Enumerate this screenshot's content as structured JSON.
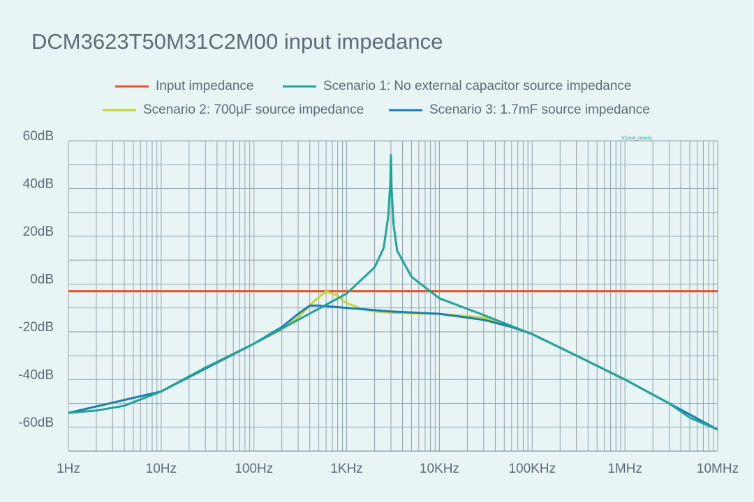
{
  "chart_data": {
    "type": "line",
    "title": "DCM3623T50M31C2M00 input impedance",
    "annotation": "V(zout_noom)",
    "log_x": true,
    "grid": true,
    "xlim": [
      1,
      10000000
    ],
    "xticks": [
      {
        "value": 1,
        "label": "1Hz"
      },
      {
        "value": 10,
        "label": "10Hz"
      },
      {
        "value": 100,
        "label": "100Hz"
      },
      {
        "value": 1000,
        "label": "1KHz"
      },
      {
        "value": 10000,
        "label": "10KHz"
      },
      {
        "value": 100000,
        "label": "100KHz"
      },
      {
        "value": 1000000,
        "label": "1MHz"
      },
      {
        "value": 10000000,
        "label": "10MHz"
      }
    ],
    "ylim": [
      -70,
      60
    ],
    "yticks": [
      {
        "value": 60,
        "label": "60dB"
      },
      {
        "value": 40,
        "label": "40dB"
      },
      {
        "value": 20,
        "label": "20dB"
      },
      {
        "value": 0,
        "label": "0dB"
      },
      {
        "value": -20,
        "label": "-20dB"
      },
      {
        "value": -40,
        "label": "-40dB"
      },
      {
        "value": -60,
        "label": "-60dB"
      }
    ],
    "series": [
      {
        "name": "Input impedance",
        "color": "#e8502e",
        "x": [
          1,
          10000000
        ],
        "values": [
          -3,
          -3
        ]
      },
      {
        "name": "Scenario 1: No external capacitor source impedance",
        "color": "#1fa39b",
        "x": [
          1,
          2,
          4,
          10,
          30,
          100,
          300,
          1000,
          2000,
          2500,
          2800,
          2950,
          3000,
          3050,
          3200,
          3500,
          5000,
          10000,
          30000,
          100000,
          300000,
          1000000,
          3000000,
          5000000,
          10000000
        ],
        "values": [
          -54,
          -53,
          -51,
          -45,
          -35,
          -25,
          -15,
          -4,
          7,
          15,
          28,
          42,
          54,
          40,
          25,
          14,
          3,
          -6,
          -13,
          -21,
          -30,
          -40,
          -50,
          -56,
          -61
        ]
      },
      {
        "name": "Scenario 2: 700µF source impedance",
        "color": "#c3d62e",
        "x": [
          1,
          10,
          100,
          200,
          300,
          450,
          600,
          800,
          1000,
          1500,
          2000,
          3000,
          10000,
          30000,
          100000,
          300000,
          1000000,
          10000000
        ],
        "values": [
          -54,
          -45,
          -25,
          -19,
          -14,
          -7,
          -3,
          -5,
          -8,
          -10.5,
          -11.5,
          -12,
          -12.5,
          -14,
          -21,
          -30,
          -40,
          -61
        ]
      },
      {
        "name": "Scenario 3: 1.7mF source impedance",
        "color": "#1b7db8",
        "x": [
          1,
          10,
          100,
          200,
          300,
          400,
          500,
          700,
          1000,
          3000,
          10000,
          30000,
          60000,
          100000,
          300000,
          1000000,
          10000000
        ],
        "values": [
          -54,
          -45,
          -25,
          -18,
          -12.5,
          -9,
          -9,
          -9.5,
          -10,
          -11.5,
          -12.5,
          -15,
          -18,
          -21,
          -30,
          -40,
          -61
        ]
      }
    ]
  }
}
